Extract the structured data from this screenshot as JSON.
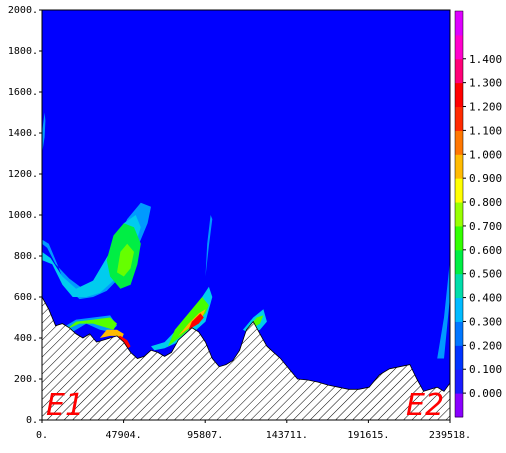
{
  "chart_data": {
    "type": "heatmap",
    "title": "",
    "xlabel": "",
    "ylabel": "",
    "xlim": [
      0,
      239518
    ],
    "ylim": [
      0,
      2000
    ],
    "x_ticks": [
      "0.",
      "47904.",
      "95807.",
      "143711.",
      "191615.",
      "239518."
    ],
    "y_ticks": [
      "0.",
      "200.",
      "400.",
      "600.",
      "800.",
      "1000.",
      "1200.",
      "1400.",
      "1600.",
      "1800.",
      "2000."
    ],
    "end_labels": [
      "E1",
      "E2"
    ],
    "colorbar": {
      "labels": [
        "0.000",
        "0.100",
        "0.200",
        "0.300",
        "0.400",
        "0.500",
        "0.600",
        "0.700",
        "0.800",
        "0.900",
        "1.000",
        "1.100",
        "1.200",
        "1.300",
        "1.400"
      ],
      "colors": [
        "#8a00ff",
        "#1a1aff",
        "#0033ff",
        "#0077ff",
        "#00bbff",
        "#00ddaa",
        "#00ee44",
        "#33ff00",
        "#99ff00",
        "#ffff00",
        "#ffbb00",
        "#ff7700",
        "#ff2a00",
        "#ff0000",
        "#ff0077",
        "#ff00cc",
        "#dd00ff"
      ]
    },
    "background_color": "#0000ff",
    "terrain": {
      "x": [
        0,
        4000,
        8000,
        12000,
        16000,
        20000,
        24000,
        28000,
        32000,
        36000,
        40000,
        44000,
        48000,
        52000,
        56000,
        60000,
        64000,
        68000,
        72000,
        76000,
        80000,
        84000,
        88000,
        92000,
        96000,
        100000,
        104000,
        108000,
        112000,
        116000,
        120000,
        124000,
        128000,
        132000,
        136000,
        140000,
        144000,
        150000,
        156000,
        162000,
        168000,
        174000,
        180000,
        186000,
        192000,
        198000,
        204000,
        210000,
        216000,
        220000,
        224000,
        228000,
        232000,
        236000,
        239518
      ],
      "y": [
        600,
        540,
        460,
        470,
        450,
        420,
        400,
        420,
        380,
        390,
        400,
        410,
        380,
        330,
        300,
        310,
        340,
        330,
        310,
        330,
        390,
        420,
        450,
        430,
        380,
        300,
        260,
        270,
        290,
        340,
        440,
        480,
        420,
        360,
        330,
        300,
        260,
        200,
        195,
        185,
        170,
        160,
        150,
        150,
        160,
        220,
        250,
        260,
        270,
        200,
        140,
        150,
        160,
        140,
        180
      ]
    },
    "contours": [
      {
        "level": 0.2,
        "color": "#0099ff",
        "x": [
          0,
          4000,
          9000,
          14000,
          22000,
          30000,
          38000,
          45000,
          52000,
          58000,
          62000,
          64000,
          58000,
          50000,
          42000,
          33000,
          24000,
          16000,
          8000,
          3000,
          0
        ],
        "y": [
          880,
          860,
          760,
          650,
          590,
          600,
          630,
          690,
          780,
          880,
          960,
          1040,
          1060,
          980,
          840,
          700,
          640,
          690,
          760,
          840,
          860
        ]
      },
      {
        "level": 0.3,
        "color": "#00ccee",
        "x": [
          0,
          6000,
          12000,
          18000,
          26000,
          34000,
          42000,
          50000,
          55000,
          58000,
          55000,
          48000,
          40000,
          30000,
          20000,
          12000,
          5000,
          0
        ],
        "y": [
          780,
          760,
          660,
          600,
          600,
          620,
          680,
          780,
          860,
          940,
          1000,
          960,
          820,
          680,
          640,
          700,
          790,
          820
        ]
      },
      {
        "level": 0.5,
        "color": "#00ee44",
        "x": [
          40000,
          46000,
          52000,
          56000,
          58000,
          54000,
          48000,
          42000,
          38000,
          40000
        ],
        "y": [
          700,
          640,
          660,
          760,
          860,
          940,
          960,
          900,
          780,
          700
        ]
      },
      {
        "level": 0.7,
        "color": "#66ff00",
        "x": [
          44000,
          48000,
          52000,
          54000,
          50000,
          46000,
          44000
        ],
        "y": [
          720,
          700,
          740,
          820,
          860,
          820,
          720
        ]
      },
      {
        "level": 0.3,
        "color": "#00ccee",
        "x": [
          64000,
          72000,
          80000,
          88000,
          94000,
          98000,
          100000,
          96000,
          88000,
          80000,
          72000,
          66000,
          64000
        ],
        "y": [
          360,
          380,
          450,
          520,
          600,
          650,
          600,
          480,
          420,
          380,
          350,
          340,
          360
        ]
      },
      {
        "level": 0.6,
        "color": "#44ff00",
        "x": [
          74000,
          82000,
          90000,
          96000,
          98000,
          94000,
          86000,
          78000,
          74000
        ],
        "y": [
          360,
          410,
          470,
          520,
          560,
          600,
          520,
          440,
          360
        ]
      },
      {
        "level": 1.0,
        "color": "#ffbb00",
        "x": [
          80000,
          88000,
          94000,
          96000,
          92000,
          86000,
          80000
        ],
        "y": [
          410,
          460,
          500,
          540,
          520,
          470,
          410
        ]
      },
      {
        "level": 1.3,
        "color": "#ff0000",
        "x": [
          86000,
          92000,
          95000,
          93000,
          88000,
          86000
        ],
        "y": [
          440,
          470,
          500,
          520,
          480,
          440
        ]
      },
      {
        "level": 0.2,
        "color": "#0099ff",
        "x": [
          10000,
          18000,
          26000,
          34000,
          40000,
          44000,
          40000,
          30000,
          20000,
          12000,
          10000
        ],
        "y": [
          400,
          430,
          470,
          440,
          430,
          460,
          510,
          500,
          490,
          450,
          400
        ]
      },
      {
        "level": 0.6,
        "color": "#55ff00",
        "x": [
          14000,
          22000,
          30000,
          38000,
          42000,
          44000,
          40000,
          30000,
          20000,
          14000
        ],
        "y": [
          440,
          470,
          470,
          450,
          440,
          470,
          500,
          490,
          480,
          440
        ]
      },
      {
        "level": 1.0,
        "color": "#ffbb00",
        "x": [
          34000,
          40000,
          44000,
          46000,
          48000,
          44000,
          38000,
          34000
        ],
        "y": [
          400,
          410,
          410,
          380,
          420,
          440,
          440,
          400
        ]
      },
      {
        "level": 1.3,
        "color": "#ff0000",
        "x": [
          42000,
          46000,
          49000,
          52000,
          50000,
          46000,
          42000
        ],
        "y": [
          400,
          370,
          340,
          360,
          390,
          410,
          400
        ]
      },
      {
        "level": 0.3,
        "color": "#00ccee",
        "x": [
          118000,
          124000,
          130000,
          132000,
          128000,
          122000,
          118000
        ],
        "y": [
          440,
          500,
          540,
          480,
          440,
          420,
          440
        ]
      },
      {
        "level": 0.6,
        "color": "#55ff00",
        "x": [
          122000,
          126000,
          130000,
          128000,
          124000,
          122000
        ],
        "y": [
          460,
          500,
          510,
          470,
          450,
          460
        ]
      },
      {
        "level": 0.2,
        "color": "#0099ff",
        "x": [
          96000,
          98000,
          100000,
          99000,
          97000,
          96000
        ],
        "y": [
          700,
          850,
          980,
          1000,
          860,
          700
        ]
      },
      {
        "level": 0.2,
        "color": "#0099ff",
        "x": [
          232000,
          236000,
          239518,
          239518,
          236000,
          232000
        ],
        "y": [
          300,
          500,
          780,
          600,
          300,
          300
        ]
      },
      {
        "level": 0.2,
        "color": "#0099ff",
        "x": [
          0,
          1500,
          2000,
          1500,
          0
        ],
        "y": [
          1300,
          1380,
          1460,
          1500,
          1400
        ]
      }
    ]
  }
}
